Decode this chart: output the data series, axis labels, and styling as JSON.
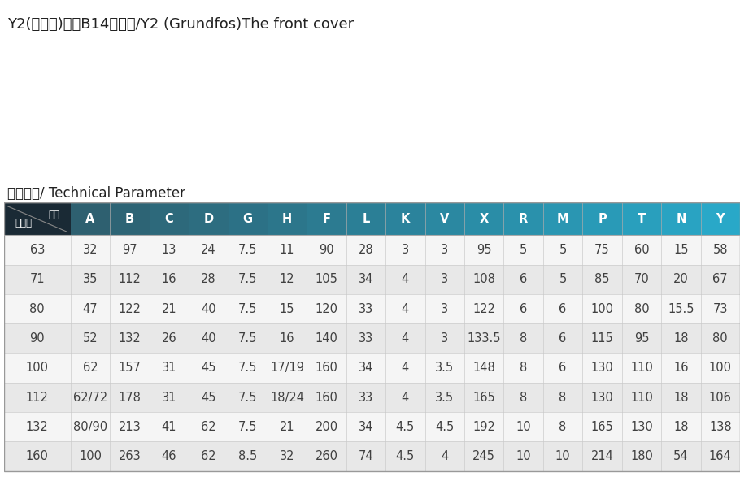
{
  "title": "Y2(格兰富)系列B14前端盖/Y2 (Grundfos)The front cover",
  "subtitle": "技术参数/ Technical Parameter",
  "header_col0_line1": "代号",
  "header_col0_line2": "机座号",
  "columns": [
    "A",
    "B",
    "C",
    "D",
    "G",
    "H",
    "F",
    "L",
    "K",
    "V",
    "X",
    "R",
    "M",
    "P",
    "T",
    "N",
    "Y"
  ],
  "rows": [
    [
      "63",
      "32",
      "97",
      "13",
      "24",
      "7.5",
      "11",
      "90",
      "28",
      "3",
      "3",
      "95",
      "5",
      "5",
      "75",
      "60",
      "15",
      "58"
    ],
    [
      "71",
      "35",
      "112",
      "16",
      "28",
      "7.5",
      "12",
      "105",
      "34",
      "4",
      "3",
      "108",
      "6",
      "5",
      "85",
      "70",
      "20",
      "67"
    ],
    [
      "80",
      "47",
      "122",
      "21",
      "40",
      "7.5",
      "15",
      "120",
      "33",
      "4",
      "3",
      "122",
      "6",
      "6",
      "100",
      "80",
      "15.5",
      "73"
    ],
    [
      "90",
      "52",
      "132",
      "26",
      "40",
      "7.5",
      "16",
      "140",
      "33",
      "4",
      "3",
      "133.5",
      "8",
      "6",
      "115",
      "95",
      "18",
      "80"
    ],
    [
      "100",
      "62",
      "157",
      "31",
      "45",
      "7.5",
      "17/19",
      "160",
      "34",
      "4",
      "3.5",
      "148",
      "8",
      "6",
      "130",
      "110",
      "16",
      "100"
    ],
    [
      "112",
      "62/72",
      "178",
      "31",
      "45",
      "7.5",
      "18/24",
      "160",
      "33",
      "4",
      "3.5",
      "165",
      "8",
      "8",
      "130",
      "110",
      "18",
      "106"
    ],
    [
      "132",
      "80/90",
      "213",
      "41",
      "62",
      "7.5",
      "21",
      "200",
      "34",
      "4.5",
      "4.5",
      "192",
      "10",
      "8",
      "165",
      "130",
      "18",
      "138"
    ],
    [
      "160",
      "100",
      "263",
      "46",
      "62",
      "8.5",
      "32",
      "260",
      "74",
      "4.5",
      "4",
      "245",
      "10",
      "10",
      "214",
      "180",
      "54",
      "164"
    ]
  ],
  "header_bg_dark": "#1a2a35",
  "header_bg_mid": "#2e6070",
  "header_bg_light": "#29a8c8",
  "row_bg_light": "#f0f0f0",
  "row_bg_dark": "#e0e0e0",
  "header_text_color": "#ffffff",
  "data_text_color": "#404040",
  "title_fontsize": 13,
  "subtitle_fontsize": 12,
  "table_fontsize": 10.5
}
